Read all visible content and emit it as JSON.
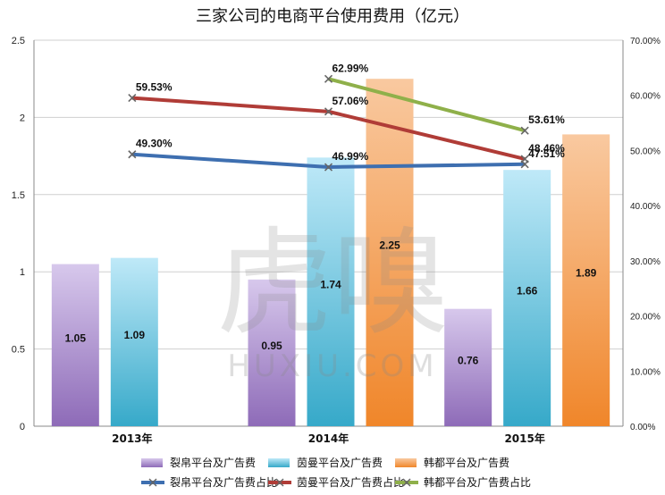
{
  "chart_data": {
    "type": "bar",
    "title": "三家公司的电商平台使用费用（亿元）",
    "categories": [
      "2013年",
      "2014年",
      "2015年"
    ],
    "ylim": [
      0,
      2.5
    ],
    "yticks": [
      "0",
      "0.5",
      "1",
      "1.5",
      "2",
      "2.5"
    ],
    "y2lim": [
      0,
      0.7
    ],
    "y2ticks": [
      "0.00%",
      "10.00%",
      "20.00%",
      "30.00%",
      "40.00%",
      "50.00%",
      "60.00%",
      "70.00%"
    ],
    "grid": true,
    "legend_position": "bottom",
    "bar_series": [
      {
        "name": "裂帛平台及广告费",
        "values": [
          1.05,
          0.95,
          0.76
        ],
        "labels": [
          "1.05",
          "0.95",
          "0.76"
        ],
        "color": "#8e6bb8",
        "color_light": "#d7c8ec"
      },
      {
        "name": "茵曼平台及广告费",
        "values": [
          1.09,
          1.74,
          1.66
        ],
        "labels": [
          "1.09",
          "1.74",
          "1.66"
        ],
        "color": "#36a9c9",
        "color_light": "#bfe9f8"
      },
      {
        "name": "韩都平台及广告费",
        "values": [
          null,
          2.25,
          1.89
        ],
        "labels": [
          "",
          "2.25",
          "1.89"
        ],
        "color": "#f0862a",
        "color_light": "#f9c9a0"
      }
    ],
    "line_series": [
      {
        "name": "裂帛平台及广告费占比",
        "values": [
          0.493,
          0.4699,
          0.4751
        ],
        "labels": [
          "49.30%",
          "46.99%",
          "47.51%"
        ],
        "color": "#3e6fb0"
      },
      {
        "name": "茵曼平台及广告费占比",
        "values": [
          0.5953,
          0.5706,
          0.4846
        ],
        "labels": [
          "59.53%",
          "57.06%",
          "48.46%"
        ],
        "color": "#b03c37"
      },
      {
        "name": "韩都平台及广告费占比",
        "values": [
          null,
          0.6299,
          0.5361
        ],
        "labels": [
          "",
          "62.99%",
          "53.61%"
        ],
        "color": "#8fb04a"
      }
    ]
  },
  "watermark": {
    "main": "虎嗅",
    "sub": "HUXIU.COM"
  }
}
